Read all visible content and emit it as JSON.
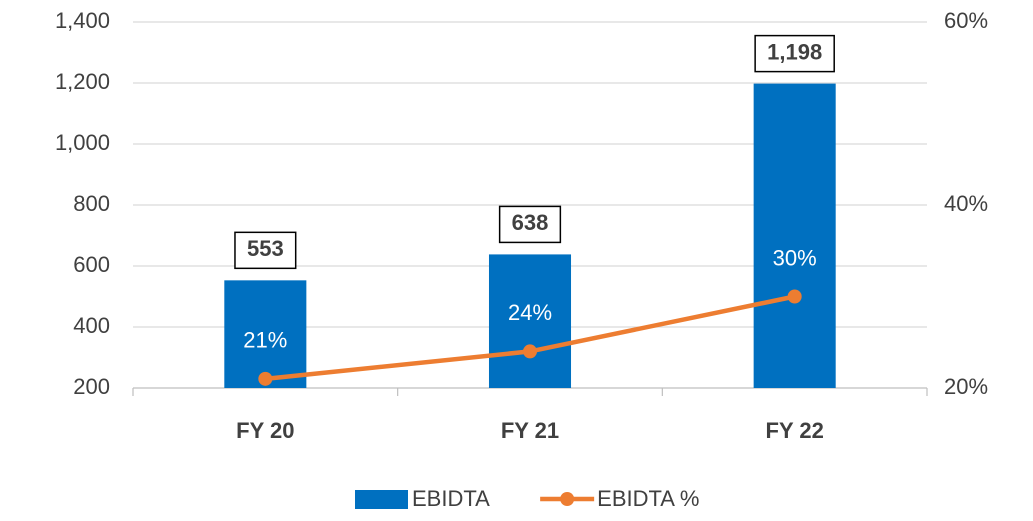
{
  "chart_data": {
    "type": "bar",
    "categories": [
      "FY 20",
      "FY 21",
      "FY 22"
    ],
    "series": [
      {
        "name": "EBIDTA",
        "type": "bar",
        "color": "#0070c0",
        "values": [
          553,
          638,
          1198
        ],
        "value_labels": [
          "553",
          "638",
          "1,198"
        ]
      },
      {
        "name": "EBIDTA %",
        "type": "line",
        "axis": "y2",
        "color": "#ed7d31",
        "values": [
          21,
          24,
          30
        ],
        "value_labels": [
          "21%",
          "24%",
          "30%"
        ]
      }
    ],
    "ylim": [
      200,
      1400
    ],
    "yticks": [
      200,
      400,
      600,
      800,
      {
        "value": 1000,
        "label": "1,000"
      },
      {
        "value": 1200,
        "label": "1,200"
      },
      {
        "value": 1400,
        "label": "1,400"
      }
    ],
    "y2lim": [
      20,
      60
    ],
    "y2ticks": [
      {
        "value": 20,
        "label": "20%"
      },
      {
        "value": 40,
        "label": "40%"
      },
      {
        "value": 60,
        "label": "60%"
      }
    ],
    "grid": true,
    "legend": "bottom"
  }
}
